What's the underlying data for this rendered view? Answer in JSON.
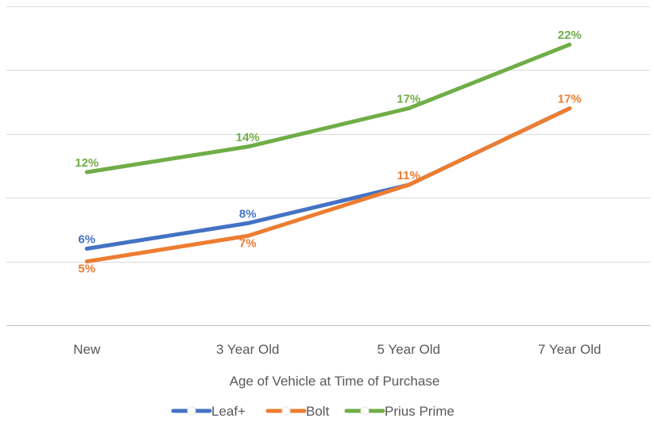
{
  "chart_data": {
    "type": "line",
    "title": "",
    "xlabel": "Age of Vehicle at Time of Purchase",
    "ylabel": "",
    "categories": [
      "New",
      "3 Year Old",
      "5 Year Old",
      "7 Year Old"
    ],
    "ylim": [
      0,
      25
    ],
    "grid": true,
    "legend": "bottom",
    "series": [
      {
        "name": "Leaf+",
        "color": "#4472C4",
        "values": [
          6,
          8,
          11,
          17
        ],
        "labels": [
          "6%",
          "8%",
          "",
          ""
        ]
      },
      {
        "name": "Bolt",
        "color": "#ED7D31",
        "values": [
          5,
          7,
          11,
          17
        ],
        "labels": [
          "5%",
          "7%",
          "11%",
          "17%"
        ]
      },
      {
        "name": "Prius Prime",
        "color": "#70AD47",
        "values": [
          12,
          14,
          17,
          22
        ],
        "labels": [
          "12%",
          "14%",
          "17%",
          "22%"
        ]
      }
    ]
  }
}
